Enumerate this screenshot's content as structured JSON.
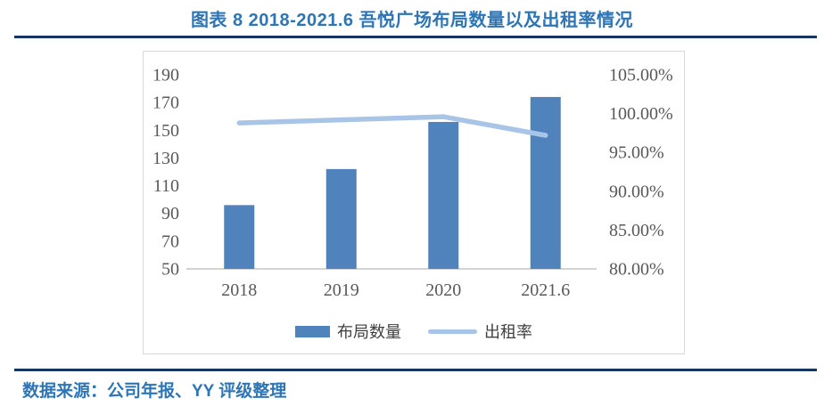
{
  "page": {
    "title": "图表 8 2018-2021.6 吾悦广场布局数量以及出租率情况",
    "source_note": "数据来源：公司年报、YY 评级整理"
  },
  "colors": {
    "title_blue": "#2E75B6",
    "source_blue": "#2E75B6",
    "rule_navy": "#17365D",
    "bar_blue": "#5083BC",
    "line_light_blue": "#A8C4E6",
    "axis_text_gray": "#595959",
    "panel_border_gray": "#D9D9D9",
    "baseline_gray": "#C6C6C6"
  },
  "chart_data": {
    "type": "bar+line",
    "title": "图表 8 2018-2021.6 吾悦广场布局数量以及出租率情况",
    "categories": [
      "2018",
      "2019",
      "2020",
      "2021.6"
    ],
    "series": [
      {
        "name": "布局数量",
        "type": "bar",
        "axis": "left",
        "values": [
          96,
          122,
          156,
          174
        ]
      },
      {
        "name": "出租率",
        "type": "line",
        "axis": "right",
        "unit": "%",
        "values": [
          98.8,
          99.2,
          99.6,
          97.2
        ]
      }
    ],
    "left_axis": {
      "min": 50,
      "max": 190,
      "step": 20,
      "tick_labels": [
        "190",
        "170",
        "150",
        "130",
        "110",
        "90",
        "70",
        "50"
      ]
    },
    "right_axis": {
      "min": 80,
      "max": 105,
      "step": 5,
      "tick_labels": [
        "105.00%",
        "100.00%",
        "95.00%",
        "90.00%",
        "85.00%",
        "80.00%"
      ]
    },
    "grid": false,
    "legend": {
      "position": "bottom-center",
      "entries": [
        "布局数量",
        "出租率"
      ]
    }
  }
}
